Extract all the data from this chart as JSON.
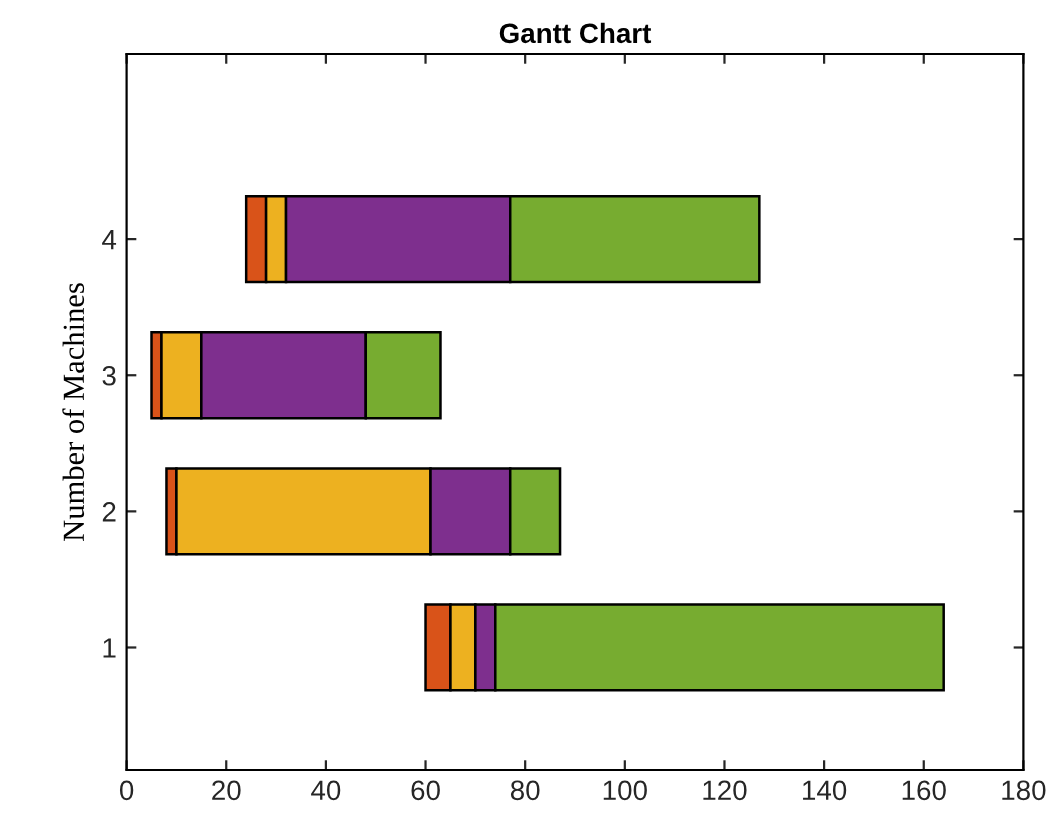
{
  "chart_data": {
    "type": "bar",
    "title": "Gantt Chart",
    "ylabel": "Number of Machines",
    "orientation": "horizontal",
    "categories": [
      "4",
      "3",
      "2",
      "1"
    ],
    "series": [
      {
        "color": "#d95319",
        "base": [
          24,
          5,
          8,
          60
        ],
        "values": [
          4,
          2,
          2,
          5
        ]
      },
      {
        "color": "#edb120",
        "base": [
          28,
          7,
          10,
          65
        ],
        "values": [
          4,
          8,
          51,
          5
        ]
      },
      {
        "color": "#7e2f8e",
        "base": [
          32,
          15,
          61,
          70
        ],
        "values": [
          45,
          33,
          16,
          4
        ]
      },
      {
        "color": "#77ac30",
        "base": [
          77,
          48,
          77,
          74
        ],
        "values": [
          50,
          15,
          10,
          90
        ]
      }
    ],
    "xlim": [
      0,
      180
    ],
    "xticks": [
      0,
      20,
      40,
      60,
      80,
      100,
      120,
      140,
      160,
      180
    ],
    "grid": false,
    "legend": false
  }
}
